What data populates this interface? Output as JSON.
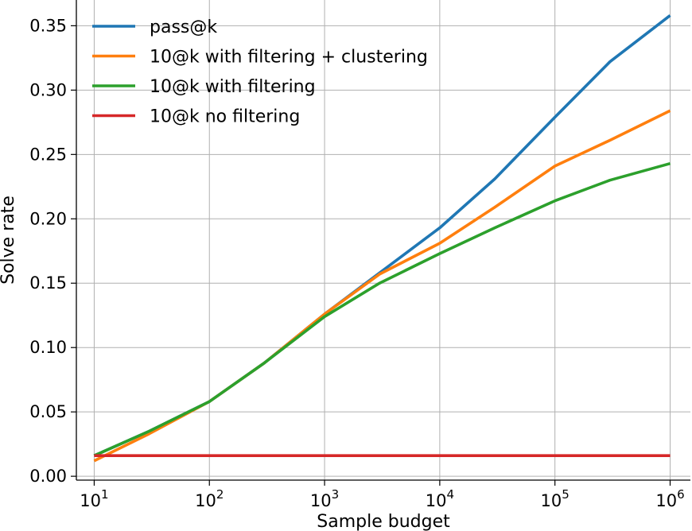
{
  "chart_data": {
    "type": "line",
    "xlabel": "Sample budget",
    "ylabel": "Solve rate",
    "x_scale": "log",
    "x": [
      10,
      30,
      100,
      300,
      1000,
      3000,
      10000,
      30000,
      100000,
      300000,
      1000000
    ],
    "xlim": [
      7,
      1500000
    ],
    "ylim": [
      -0.003,
      0.37
    ],
    "xticks": [
      {
        "base": "10",
        "exp": "1"
      },
      {
        "base": "10",
        "exp": "2"
      },
      {
        "base": "10",
        "exp": "3"
      },
      {
        "base": "10",
        "exp": "4"
      },
      {
        "base": "10",
        "exp": "5"
      },
      {
        "base": "10",
        "exp": "6"
      }
    ],
    "yticks": [
      "0.00",
      "0.05",
      "0.10",
      "0.15",
      "0.20",
      "0.25",
      "0.30",
      "0.35"
    ],
    "grid": true,
    "legend_position": "top-left",
    "series": [
      {
        "name": "pass@k",
        "color": "#1f77b4",
        "values": [
          0.016,
          0.035,
          0.058,
          0.088,
          0.126,
          0.158,
          0.193,
          0.231,
          0.279,
          0.322,
          0.358
        ]
      },
      {
        "name": "10@k with filtering + clustering",
        "color": "#ff7f0e",
        "values": [
          0.012,
          0.033,
          0.058,
          0.088,
          0.126,
          0.157,
          0.181,
          0.209,
          0.241,
          0.261,
          0.284
        ]
      },
      {
        "name": "10@k with filtering",
        "color": "#2ca02c",
        "values": [
          0.016,
          0.035,
          0.058,
          0.088,
          0.124,
          0.15,
          0.173,
          0.193,
          0.214,
          0.23,
          0.243
        ]
      },
      {
        "name": "10@k no filtering",
        "color": "#d62728",
        "values": [
          0.016,
          0.016,
          0.016,
          0.016,
          0.016,
          0.016,
          0.016,
          0.016,
          0.016,
          0.016,
          0.016
        ]
      }
    ]
  }
}
